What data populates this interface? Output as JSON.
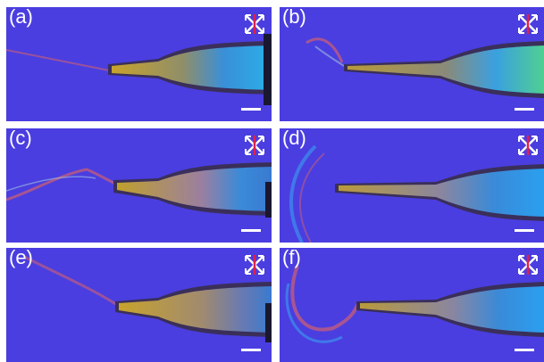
{
  "panels": [
    {
      "label": "(a)",
      "debris": "thin-strand"
    },
    {
      "label": "(b)",
      "debris": "small-tuft"
    },
    {
      "label": "(c)",
      "debris": "folded-film"
    },
    {
      "label": "(d)",
      "debris": "curved-sheet"
    },
    {
      "label": "(e)",
      "debris": "thin-strand"
    },
    {
      "label": "(f)",
      "debris": "curled-sheet"
    }
  ],
  "icons": {
    "polarizer": "crossed-polarizer-icon",
    "scale": "scale-bar"
  },
  "colors": {
    "background": "#4a3ee0",
    "fiber_core": "#b3a52a",
    "fiber_edge": "#3a2f5a",
    "birefringence_blue": "#2fa8f0",
    "arrow_white": "#ffffff",
    "analyzer_red": "#e0204a"
  }
}
